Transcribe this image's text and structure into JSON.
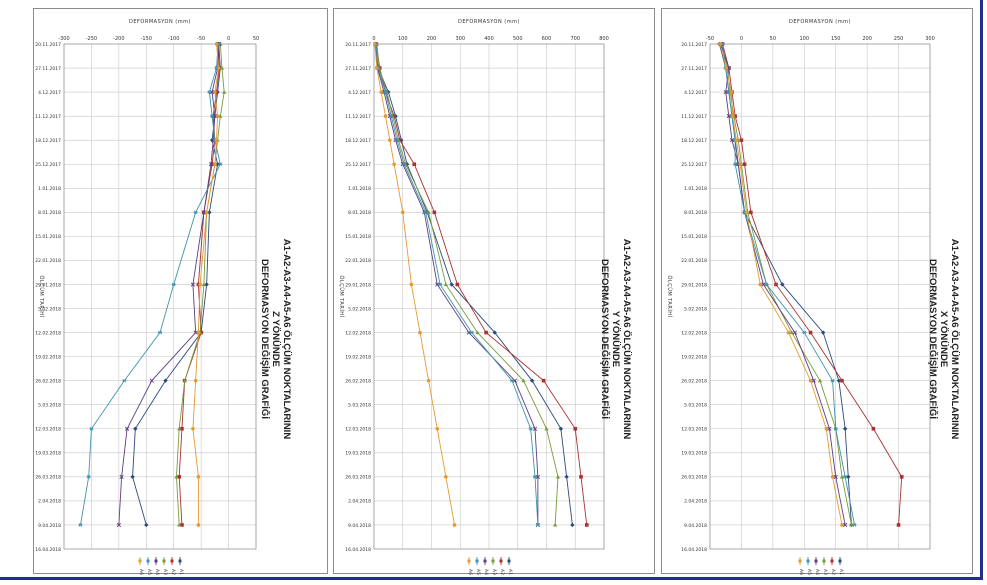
{
  "colors": {
    "A1": "#2e4a7d",
    "A2": "#a83232",
    "A3": "#7a9a3e",
    "A4": "#5b3f7f",
    "A5": "#3f93ad",
    "A6": "#e59a30"
  },
  "dates": [
    "20.11.2017",
    "27.11.2017",
    "4.12.2017",
    "11.12.2017",
    "18.12.2017",
    "25.12.2017",
    "1.01.2018",
    "8.01.2018",
    "15.01.2018",
    "22.01.2018",
    "29.01.2018",
    "5.02.2018",
    "12.02.2018",
    "19.02.2018",
    "26.02.2018",
    "5.03.2018",
    "12.03.2018",
    "19.03.2018",
    "26.03.2018",
    "2.04.2018",
    "9.04.2018",
    "16.04.2018"
  ],
  "chart_data": [
    {
      "type": "line",
      "orientation": "rotated",
      "title_lines": [
        "A1-A2-A3-A4-A5-A6 ÖLÇÜM NOKTALARININ",
        "Z YÖNÜNDE",
        "DEFORMASYON DEĞİŞİM GRAFİĞİ"
      ],
      "value_axis_label": "DEFORMASYON (mm)",
      "date_axis_label": "ÖLÇÜM TARİHİ",
      "value_range": [
        -300,
        50
      ],
      "value_ticks": [
        -300,
        -250,
        -200,
        -150,
        -100,
        -50,
        0,
        50
      ],
      "measurement_date_indices": [
        0,
        1,
        2,
        3,
        4,
        5,
        7,
        10,
        12,
        14,
        16,
        18,
        20
      ],
      "series": [
        {
          "name": "A1",
          "values": [
            -18,
            -15,
            -20,
            -25,
            -30,
            -20,
            -35,
            -40,
            -50,
            -115,
            -170,
            -175,
            -150
          ]
        },
        {
          "name": "A2",
          "values": [
            -20,
            -17,
            -22,
            -28,
            -25,
            -30,
            -45,
            -55,
            -50,
            -80,
            -85,
            -90,
            -85
          ]
        },
        {
          "name": "A3",
          "values": [
            -15,
            -12,
            -8,
            -15,
            -20,
            -25,
            -40,
            -45,
            -52,
            -80,
            -90,
            -95,
            -90
          ]
        },
        {
          "name": "A4",
          "values": [
            -17,
            -20,
            -30,
            -25,
            -28,
            -32,
            -45,
            -65,
            -60,
            -140,
            -185,
            -195,
            -200
          ]
        },
        {
          "name": "A5",
          "values": [
            -19,
            -22,
            -35,
            -30,
            -25,
            -15,
            -60,
            -100,
            -125,
            -190,
            -250,
            -255,
            -270
          ]
        },
        {
          "name": "A6",
          "values": [
            -22,
            -18,
            -25,
            -20,
            -22,
            -25,
            -40,
            -52,
            -55,
            -60,
            -65,
            -55,
            -55
          ]
        }
      ]
    },
    {
      "type": "line",
      "orientation": "rotated",
      "title_lines": [
        "A1-A2-A3-A4-A5-A6 ÖLÇÜM NOKTALARININ",
        "Y YÖNÜNDE",
        "DEFORMASYON DEĞİŞİM GRAFİĞİ"
      ],
      "value_axis_label": "DEFORMASYON (mm)",
      "date_axis_label": "ÖLÇÜM TARİHİ",
      "value_range": [
        0,
        800
      ],
      "value_ticks": [
        0,
        100,
        200,
        300,
        400,
        500,
        600,
        700,
        800
      ],
      "measurement_date_indices": [
        0,
        1,
        2,
        3,
        4,
        5,
        7,
        10,
        12,
        14,
        16,
        18,
        20
      ],
      "series": [
        {
          "name": "A1",
          "values": [
            5,
            15,
            50,
            75,
            95,
            115,
            185,
            270,
            420,
            550,
            650,
            670,
            690
          ]
        },
        {
          "name": "A2",
          "values": [
            8,
            20,
            40,
            70,
            90,
            140,
            210,
            290,
            390,
            590,
            700,
            720,
            740
          ]
        },
        {
          "name": "A3",
          "values": [
            10,
            18,
            45,
            65,
            85,
            110,
            190,
            250,
            360,
            520,
            600,
            640,
            630
          ]
        },
        {
          "name": "A4",
          "values": [
            5,
            12,
            35,
            55,
            75,
            100,
            175,
            220,
            330,
            490,
            560,
            570,
            570
          ]
        },
        {
          "name": "A5",
          "values": [
            7,
            14,
            40,
            60,
            80,
            105,
            180,
            230,
            340,
            480,
            545,
            560,
            570
          ]
        },
        {
          "name": "A6",
          "values": [
            3,
            10,
            25,
            40,
            55,
            70,
            100,
            130,
            160,
            190,
            220,
            250,
            280
          ]
        }
      ]
    },
    {
      "type": "line",
      "orientation": "rotated",
      "title_lines": [
        "A1-A2-A3-A4-A5-A6 ÖLÇÜM NOKTALARININ",
        "X YÖNÜNDE",
        "DEFORMASYON DEĞİŞİM GRAFİĞİ"
      ],
      "value_axis_label": "DEFORMASYON (mm)",
      "date_axis_label": "ÖLÇÜM TARİHİ",
      "value_range": [
        -50,
        300
      ],
      "value_ticks": [
        -50,
        0,
        50,
        100,
        150,
        200,
        250,
        300
      ],
      "measurement_date_indices": [
        0,
        1,
        2,
        3,
        4,
        5,
        7,
        10,
        12,
        14,
        16,
        18,
        20
      ],
      "series": [
        {
          "name": "A1",
          "values": [
            -35,
            -25,
            -20,
            -15,
            -10,
            -5,
            5,
            65,
            130,
            155,
            165,
            170,
            175
          ]
        },
        {
          "name": "A2",
          "values": [
            -30,
            -20,
            -15,
            -10,
            0,
            5,
            15,
            55,
            110,
            160,
            210,
            255,
            250
          ]
        },
        {
          "name": "A3",
          "values": [
            -32,
            -22,
            -18,
            -12,
            -5,
            0,
            10,
            40,
            80,
            125,
            150,
            160,
            175
          ]
        },
        {
          "name": "A4",
          "values": [
            -33,
            -20,
            -25,
            -20,
            -15,
            -5,
            5,
            35,
            85,
            115,
            140,
            150,
            165
          ]
        },
        {
          "name": "A5",
          "values": [
            -30,
            -25,
            -20,
            -15,
            -10,
            -10,
            5,
            40,
            100,
            145,
            150,
            165,
            180
          ]
        },
        {
          "name": "A6",
          "values": [
            -34,
            -24,
            -16,
            -14,
            -8,
            -2,
            8,
            30,
            75,
            110,
            135,
            145,
            160
          ]
        }
      ]
    }
  ]
}
